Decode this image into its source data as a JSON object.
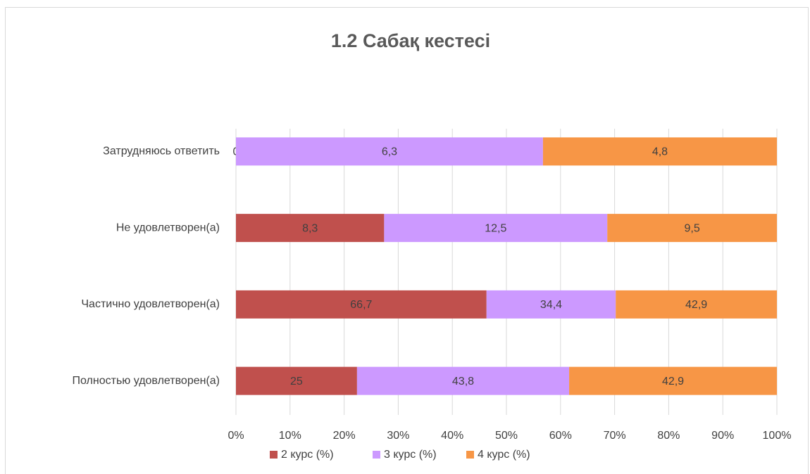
{
  "chart_data": {
    "type": "stacked-percent-hbar",
    "title": "1.2 Сабақ кестесі",
    "categories": [
      "Затрудняюсь ответить",
      "Не удовлетворен(а)",
      "Частично удовлетворен(а)",
      "Полностью удовлетворен(а)"
    ],
    "series": [
      {
        "name": "2 курс (%)",
        "color": "#c0504d",
        "values": [
          0,
          8.3,
          66.7,
          25
        ],
        "value_labels": [
          "0",
          "8,3",
          "66,7",
          "25"
        ]
      },
      {
        "name": "3 курс (%)",
        "color": "#cc99ff",
        "values": [
          6.3,
          12.5,
          34.4,
          43.8
        ],
        "value_labels": [
          "6,3",
          "12,5",
          "34,4",
          "43,8"
        ]
      },
      {
        "name": "4 курс (%)",
        "color": "#f79646",
        "values": [
          4.8,
          9.5,
          42.9,
          42.9
        ],
        "value_labels": [
          "4,8",
          "9,5",
          "42,9",
          "42,9"
        ]
      }
    ],
    "xlim": [
      0,
      100
    ],
    "xticks": [
      {
        "value": 0,
        "label": "0%"
      },
      {
        "value": 10,
        "label": "10%"
      },
      {
        "value": 20,
        "label": "20%"
      },
      {
        "value": 30,
        "label": "30%"
      },
      {
        "value": 40,
        "label": "40%"
      },
      {
        "value": 50,
        "label": "50%"
      },
      {
        "value": 60,
        "label": "60%"
      },
      {
        "value": 70,
        "label": "70%"
      },
      {
        "value": 80,
        "label": "80%"
      },
      {
        "value": 90,
        "label": "90%"
      },
      {
        "value": 100,
        "label": "100%"
      }
    ],
    "grid": true,
    "legend": "bottom"
  }
}
